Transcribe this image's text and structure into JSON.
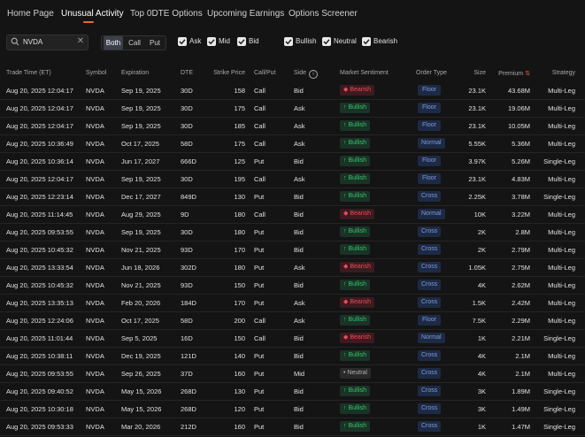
{
  "nav": {
    "tabs": [
      "Home Page",
      "Unusual Activity",
      "Top 0DTE Options",
      "Upcoming Earnings",
      "Options Screener"
    ],
    "active_tab": "Unusual Activity",
    "accent_color": "#e8692b"
  },
  "filters": {
    "search_value": "NVDA",
    "type_options": [
      "Both",
      "Call",
      "Put"
    ],
    "type_selected": "Both",
    "side_checks": [
      "Ask",
      "Mid",
      "Bid"
    ],
    "sentiment_checks": [
      "Bullish",
      "Neutral",
      "Bearish"
    ]
  },
  "table": {
    "headers": {
      "time": "Trade Time (ET)",
      "symbol": "Symbol",
      "expiration": "Expiration",
      "dte": "DTE",
      "strike": "Strike Price",
      "callput": "Call/Put",
      "side": "Side",
      "sentiment": "Market Sentiment",
      "order_type": "Order Type",
      "size": "Size",
      "premium": "Premium",
      "strategy": "Strategy"
    },
    "sort_column": "Premium",
    "rows": [
      {
        "time": "Aug 20, 2025 12:04:17",
        "symbol": "NVDA",
        "expiration": "Sep 19, 2025",
        "dte": "30D",
        "strike": "158",
        "callput": "Call",
        "side": "Bid",
        "sentiment": "Bearish",
        "order_type": "Floor",
        "size": "23.1K",
        "premium": "43.68M",
        "strategy": "Multi-Leg"
      },
      {
        "time": "Aug 20, 2025 12:04:17",
        "symbol": "NVDA",
        "expiration": "Sep 19, 2025",
        "dte": "30D",
        "strike": "175",
        "callput": "Call",
        "side": "Ask",
        "sentiment": "Bullish",
        "order_type": "Floor",
        "size": "23.1K",
        "premium": "19.06M",
        "strategy": "Multi-Leg"
      },
      {
        "time": "Aug 20, 2025 12:04:17",
        "symbol": "NVDA",
        "expiration": "Sep 19, 2025",
        "dte": "30D",
        "strike": "185",
        "callput": "Call",
        "side": "Ask",
        "sentiment": "Bullish",
        "order_type": "Floor",
        "size": "23.1K",
        "premium": "10.05M",
        "strategy": "Multi-Leg"
      },
      {
        "time": "Aug 20, 2025 10:36:49",
        "symbol": "NVDA",
        "expiration": "Oct 17, 2025",
        "dte": "58D",
        "strike": "175",
        "callput": "Call",
        "side": "Ask",
        "sentiment": "Bullish",
        "order_type": "Normal",
        "size": "5.55K",
        "premium": "5.36M",
        "strategy": "Multi-Leg"
      },
      {
        "time": "Aug 20, 2025 10:36:14",
        "symbol": "NVDA",
        "expiration": "Jun 17, 2027",
        "dte": "666D",
        "strike": "125",
        "callput": "Put",
        "side": "Bid",
        "sentiment": "Bullish",
        "order_type": "Floor",
        "size": "3.97K",
        "premium": "5.26M",
        "strategy": "Single-Leg"
      },
      {
        "time": "Aug 20, 2025 12:04:17",
        "symbol": "NVDA",
        "expiration": "Sep 19, 2025",
        "dte": "30D",
        "strike": "195",
        "callput": "Call",
        "side": "Ask",
        "sentiment": "Bullish",
        "order_type": "Floor",
        "size": "23.1K",
        "premium": "4.83M",
        "strategy": "Multi-Leg"
      },
      {
        "time": "Aug 20, 2025 12:23:14",
        "symbol": "NVDA",
        "expiration": "Dec 17, 2027",
        "dte": "849D",
        "strike": "130",
        "callput": "Put",
        "side": "Bid",
        "sentiment": "Bullish",
        "order_type": "Cross",
        "size": "2.25K",
        "premium": "3.78M",
        "strategy": "Single-Leg"
      },
      {
        "time": "Aug 20, 2025 11:14:45",
        "symbol": "NVDA",
        "expiration": "Aug 29, 2025",
        "dte": "9D",
        "strike": "180",
        "callput": "Call",
        "side": "Bid",
        "sentiment": "Bearish",
        "order_type": "Normal",
        "size": "10K",
        "premium": "3.22M",
        "strategy": "Multi-Leg"
      },
      {
        "time": "Aug 20, 2025 09:53:55",
        "symbol": "NVDA",
        "expiration": "Sep 19, 2025",
        "dte": "30D",
        "strike": "180",
        "callput": "Put",
        "side": "Bid",
        "sentiment": "Bullish",
        "order_type": "Cross",
        "size": "2K",
        "premium": "2.8M",
        "strategy": "Multi-Leg"
      },
      {
        "time": "Aug 20, 2025 10:45:32",
        "symbol": "NVDA",
        "expiration": "Nov 21, 2025",
        "dte": "93D",
        "strike": "170",
        "callput": "Put",
        "side": "Bid",
        "sentiment": "Bullish",
        "order_type": "Cross",
        "size": "2K",
        "premium": "2.79M",
        "strategy": "Multi-Leg"
      },
      {
        "time": "Aug 20, 2025 13:33:54",
        "symbol": "NVDA",
        "expiration": "Jun 18, 2026",
        "dte": "302D",
        "strike": "180",
        "callput": "Put",
        "side": "Ask",
        "sentiment": "Bearish",
        "order_type": "Cross",
        "size": "1.05K",
        "premium": "2.75M",
        "strategy": "Multi-Leg"
      },
      {
        "time": "Aug 20, 2025 10:45:32",
        "symbol": "NVDA",
        "expiration": "Nov 21, 2025",
        "dte": "93D",
        "strike": "150",
        "callput": "Put",
        "side": "Bid",
        "sentiment": "Bullish",
        "order_type": "Cross",
        "size": "4K",
        "premium": "2.62M",
        "strategy": "Multi-Leg"
      },
      {
        "time": "Aug 20, 2025 13:35:13",
        "symbol": "NVDA",
        "expiration": "Feb 20, 2026",
        "dte": "184D",
        "strike": "170",
        "callput": "Put",
        "side": "Ask",
        "sentiment": "Bearish",
        "order_type": "Cross",
        "size": "1.5K",
        "premium": "2.42M",
        "strategy": "Multi-Leg"
      },
      {
        "time": "Aug 20, 2025 12:24:06",
        "symbol": "NVDA",
        "expiration": "Oct 17, 2025",
        "dte": "58D",
        "strike": "200",
        "callput": "Call",
        "side": "Ask",
        "sentiment": "Bullish",
        "order_type": "Floor",
        "size": "7.5K",
        "premium": "2.29M",
        "strategy": "Multi-Leg"
      },
      {
        "time": "Aug 20, 2025 11:01:44",
        "symbol": "NVDA",
        "expiration": "Sep 5, 2025",
        "dte": "16D",
        "strike": "150",
        "callput": "Call",
        "side": "Bid",
        "sentiment": "Bearish",
        "order_type": "Normal",
        "size": "1K",
        "premium": "2.21M",
        "strategy": "Single-Leg"
      },
      {
        "time": "Aug 20, 2025 10:38:11",
        "symbol": "NVDA",
        "expiration": "Dec 19, 2025",
        "dte": "121D",
        "strike": "140",
        "callput": "Put",
        "side": "Bid",
        "sentiment": "Bullish",
        "order_type": "Cross",
        "size": "4K",
        "premium": "2.1M",
        "strategy": "Multi-Leg"
      },
      {
        "time": "Aug 20, 2025 09:53:55",
        "symbol": "NVDA",
        "expiration": "Sep 26, 2025",
        "dte": "37D",
        "strike": "160",
        "callput": "Put",
        "side": "Mid",
        "sentiment": "Neutral",
        "order_type": "Cross",
        "size": "4K",
        "premium": "2.1M",
        "strategy": "Multi-Leg"
      },
      {
        "time": "Aug 20, 2025 09:40:52",
        "symbol": "NVDA",
        "expiration": "May 15, 2026",
        "dte": "268D",
        "strike": "130",
        "callput": "Put",
        "side": "Bid",
        "sentiment": "Bullish",
        "order_type": "Cross",
        "size": "3K",
        "premium": "1.89M",
        "strategy": "Single-Leg"
      },
      {
        "time": "Aug 20, 2025 10:30:18",
        "symbol": "NVDA",
        "expiration": "May 15, 2026",
        "dte": "268D",
        "strike": "120",
        "callput": "Put",
        "side": "Bid",
        "sentiment": "Bullish",
        "order_type": "Cross",
        "size": "3K",
        "premium": "1.49M",
        "strategy": "Single-Leg"
      },
      {
        "time": "Aug 20, 2025 09:53:33",
        "symbol": "NVDA",
        "expiration": "Mar 20, 2026",
        "dte": "212D",
        "strike": "160",
        "callput": "Put",
        "side": "Bid",
        "sentiment": "Bullish",
        "order_type": "Cross",
        "size": "1K",
        "premium": "1.47M",
        "strategy": "Single-Leg"
      }
    ]
  }
}
